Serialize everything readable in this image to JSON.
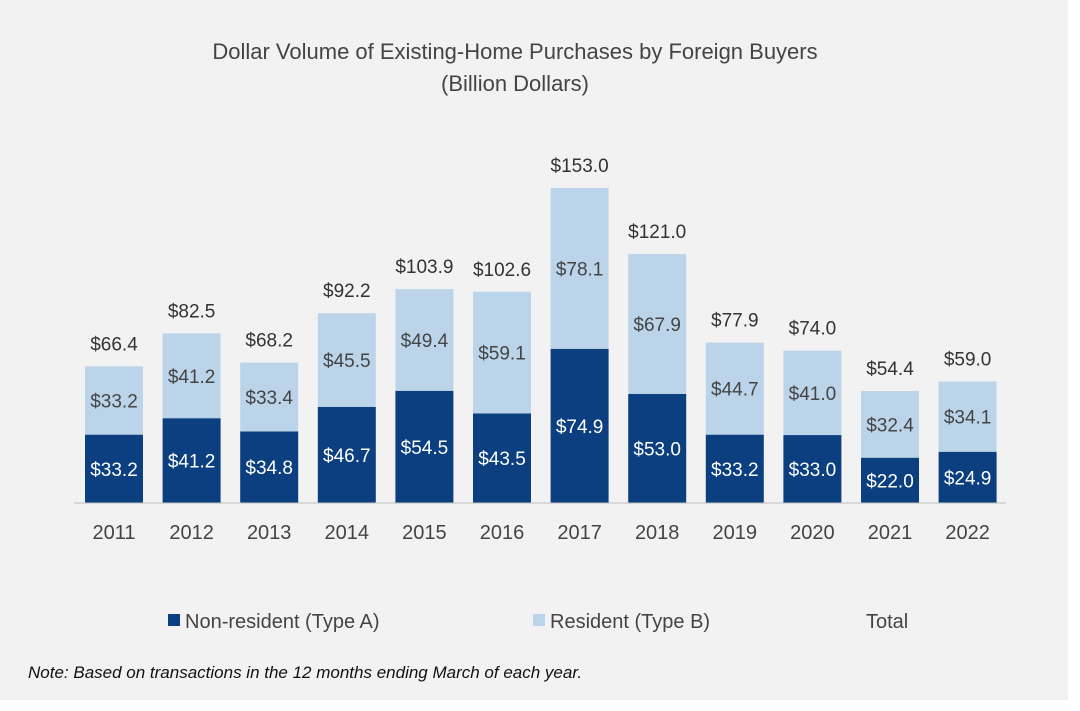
{
  "chart_data": {
    "type": "bar",
    "stacked": true,
    "title": "Dollar Volume of Existing-Home Purchases by Foreign Buyers",
    "subtitle": "(Billion Dollars)",
    "categories": [
      "2011",
      "2012",
      "2013",
      "2014",
      "2015",
      "2016",
      "2017",
      "2018",
      "2019",
      "2020",
      "2021",
      "2022"
    ],
    "series": [
      {
        "name": "Non-resident (Type A)",
        "color": "#0b3f7f",
        "values": [
          33.2,
          41.2,
          34.8,
          46.7,
          54.5,
          43.5,
          74.9,
          53.0,
          33.2,
          33.0,
          22.0,
          24.9
        ],
        "labels": [
          "$33.2",
          "$41.2",
          "$34.8",
          "$46.7",
          "$54.5",
          "$43.5",
          "$74.9",
          "$53.0",
          "$33.2",
          "$33.0",
          "$22.0",
          "$24.9"
        ]
      },
      {
        "name": "Resident (Type B)",
        "color": "#bcd4ea",
        "values": [
          33.2,
          41.2,
          33.4,
          45.5,
          49.4,
          59.1,
          78.1,
          67.9,
          44.7,
          41.0,
          32.4,
          34.1
        ],
        "labels": [
          "$33.2",
          "$41.2",
          "$33.4",
          "$45.5",
          "$49.4",
          "$59.1",
          "$78.1",
          "$67.9",
          "$44.7",
          "$41.0",
          "$32.4",
          "$34.1"
        ]
      }
    ],
    "totals": {
      "name": "Total",
      "values": [
        66.4,
        82.5,
        68.2,
        92.2,
        103.9,
        102.6,
        153.0,
        121.0,
        77.9,
        74.0,
        54.4,
        59.0
      ],
      "labels": [
        "$66.4",
        "$82.5",
        "$68.2",
        "$92.2",
        "$103.9",
        "$102.6",
        "$153.0",
        "$121.0",
        "$77.9",
        "$74.0",
        "$54.4",
        "$59.0"
      ]
    },
    "ylim": [
      0,
      153
    ],
    "grid": false,
    "legend": "bottom"
  },
  "note": "Note: Based on transactions in the 12 months ending March of each year."
}
